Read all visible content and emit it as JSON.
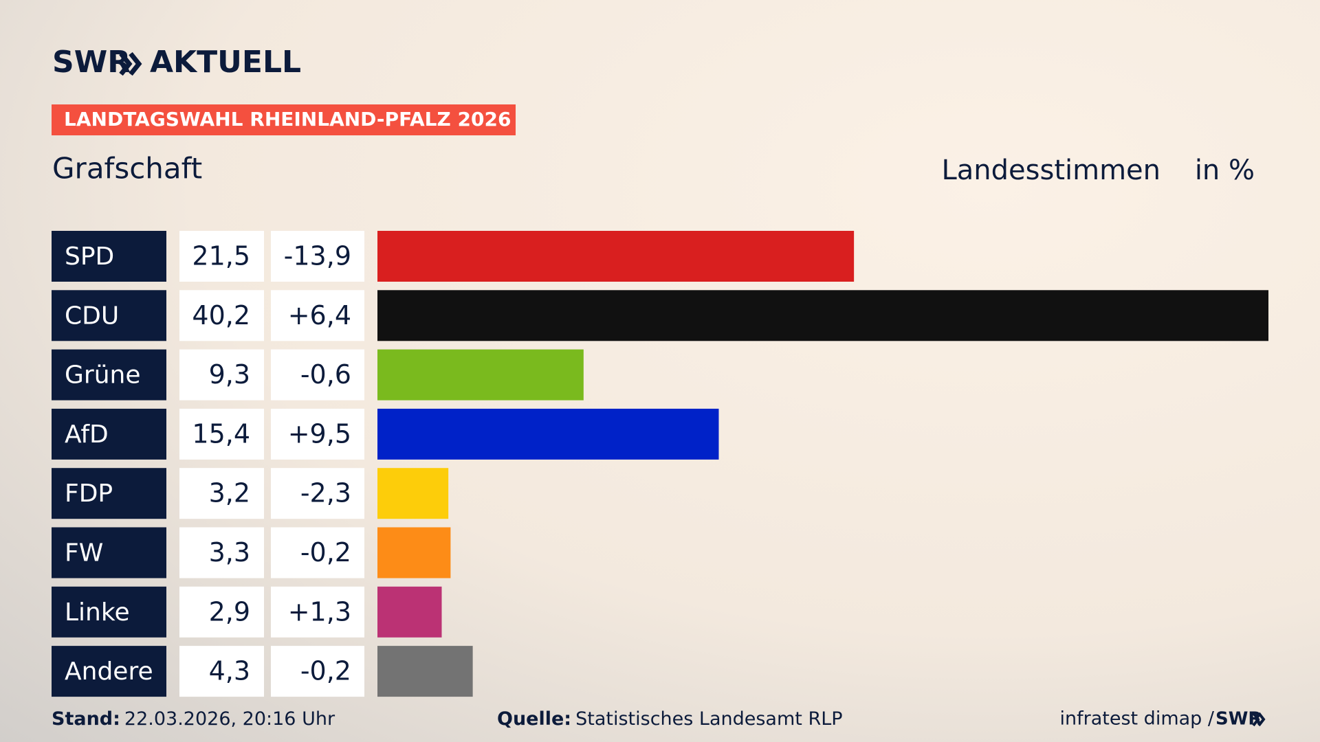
{
  "header": {
    "brand": "SWR",
    "brand_suffix": "AKTUELL",
    "tag": "LANDTAGSWAHL RHEINLAND-PFALZ 2026"
  },
  "chart_data": {
    "type": "bar",
    "title": "Grafschaft",
    "measure": "Landesstimmen",
    "unit": "in %",
    "categories": [
      "SPD",
      "CDU",
      "Grüne",
      "AfD",
      "FDP",
      "FW",
      "Linke",
      "Andere"
    ],
    "values": [
      21.5,
      40.2,
      9.3,
      15.4,
      3.2,
      3.3,
      2.9,
      4.3
    ],
    "value_labels": [
      "21,5",
      "40,2",
      "9,3",
      "15,4",
      "3,2",
      "3,3",
      "2,9",
      "4,3"
    ],
    "changes": [
      -13.9,
      6.4,
      -0.6,
      9.5,
      -2.3,
      -0.2,
      1.3,
      -0.2
    ],
    "change_labels": [
      "-13,9",
      "+6,4",
      "-0,6",
      "+9,5",
      "-2,3",
      "-0,2",
      "+1,3",
      "-0,2"
    ],
    "colors": [
      "#d91f1f",
      "#111111",
      "#7aba1e",
      "#0022c8",
      "#fdcd0a",
      "#fd8c17",
      "#bb3274",
      "#737373"
    ]
  },
  "footer": {
    "stand_label": "Stand:",
    "stand": "22.03.2026, 20:16 Uhr",
    "source_label": "Quelle:",
    "source": "Statistisches Landesamt RLP",
    "credit": "infratest dimap / ",
    "credit_brand": "SWR"
  }
}
